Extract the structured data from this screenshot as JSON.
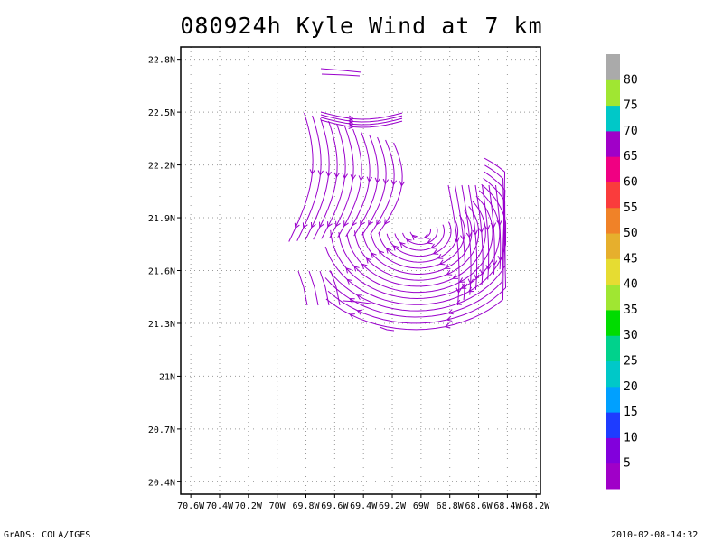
{
  "chart_data": {
    "type": "streamline",
    "title": "080924h Kyle Wind at 7 km",
    "xlabel": "",
    "ylabel": "",
    "x_ticks": [
      {
        "value": -70.6,
        "label": "70.6W"
      },
      {
        "value": -70.4,
        "label": "70.4W"
      },
      {
        "value": -70.2,
        "label": "70.2W"
      },
      {
        "value": -70.0,
        "label": "70W"
      },
      {
        "value": -69.8,
        "label": "69.8W"
      },
      {
        "value": -69.6,
        "label": "69.6W"
      },
      {
        "value": -69.4,
        "label": "69.4W"
      },
      {
        "value": -69.2,
        "label": "69.2W"
      },
      {
        "value": -69.0,
        "label": "69W"
      },
      {
        "value": -68.8,
        "label": "68.8W"
      },
      {
        "value": -68.6,
        "label": "68.6W"
      },
      {
        "value": -68.4,
        "label": "68.4W"
      },
      {
        "value": -68.2,
        "label": "68.2W"
      }
    ],
    "y_ticks": [
      {
        "value": 20.4,
        "label": "20.4N"
      },
      {
        "value": 20.7,
        "label": "20.7N"
      },
      {
        "value": 21.0,
        "label": "21N"
      },
      {
        "value": 21.3,
        "label": "21.3N"
      },
      {
        "value": 21.6,
        "label": "21.6N"
      },
      {
        "value": 21.9,
        "label": "21.9N"
      },
      {
        "value": 22.2,
        "label": "22.2N"
      },
      {
        "value": 22.5,
        "label": "22.5N"
      },
      {
        "value": 22.8,
        "label": "22.8N"
      }
    ],
    "xlim": [
      -70.67,
      -68.17
    ],
    "ylim": [
      20.33,
      22.87
    ],
    "grid": true,
    "stream_color": "#9a00cc",
    "vortex_center": {
      "lon": -69.0,
      "lat": 21.83
    },
    "colorbar": {
      "labels": [
        "5",
        "10",
        "15",
        "20",
        "25",
        "30",
        "35",
        "40",
        "45",
        "50",
        "55",
        "60",
        "65",
        "70",
        "75",
        "80"
      ],
      "colors": [
        "#a000c8",
        "#8200dc",
        "#1e3cff",
        "#00a0ff",
        "#00c8c8",
        "#00d28c",
        "#00dc00",
        "#a0e632",
        "#e6dc32",
        "#e6af2d",
        "#f08228",
        "#fa3c3c",
        "#f00082",
        "#a000c8",
        "#00c8c8",
        "#a0e632",
        "#aaaaaa"
      ]
    }
  },
  "footer": {
    "left": "GrADS: COLA/IGES",
    "right": "2010-02-08-14:32"
  }
}
